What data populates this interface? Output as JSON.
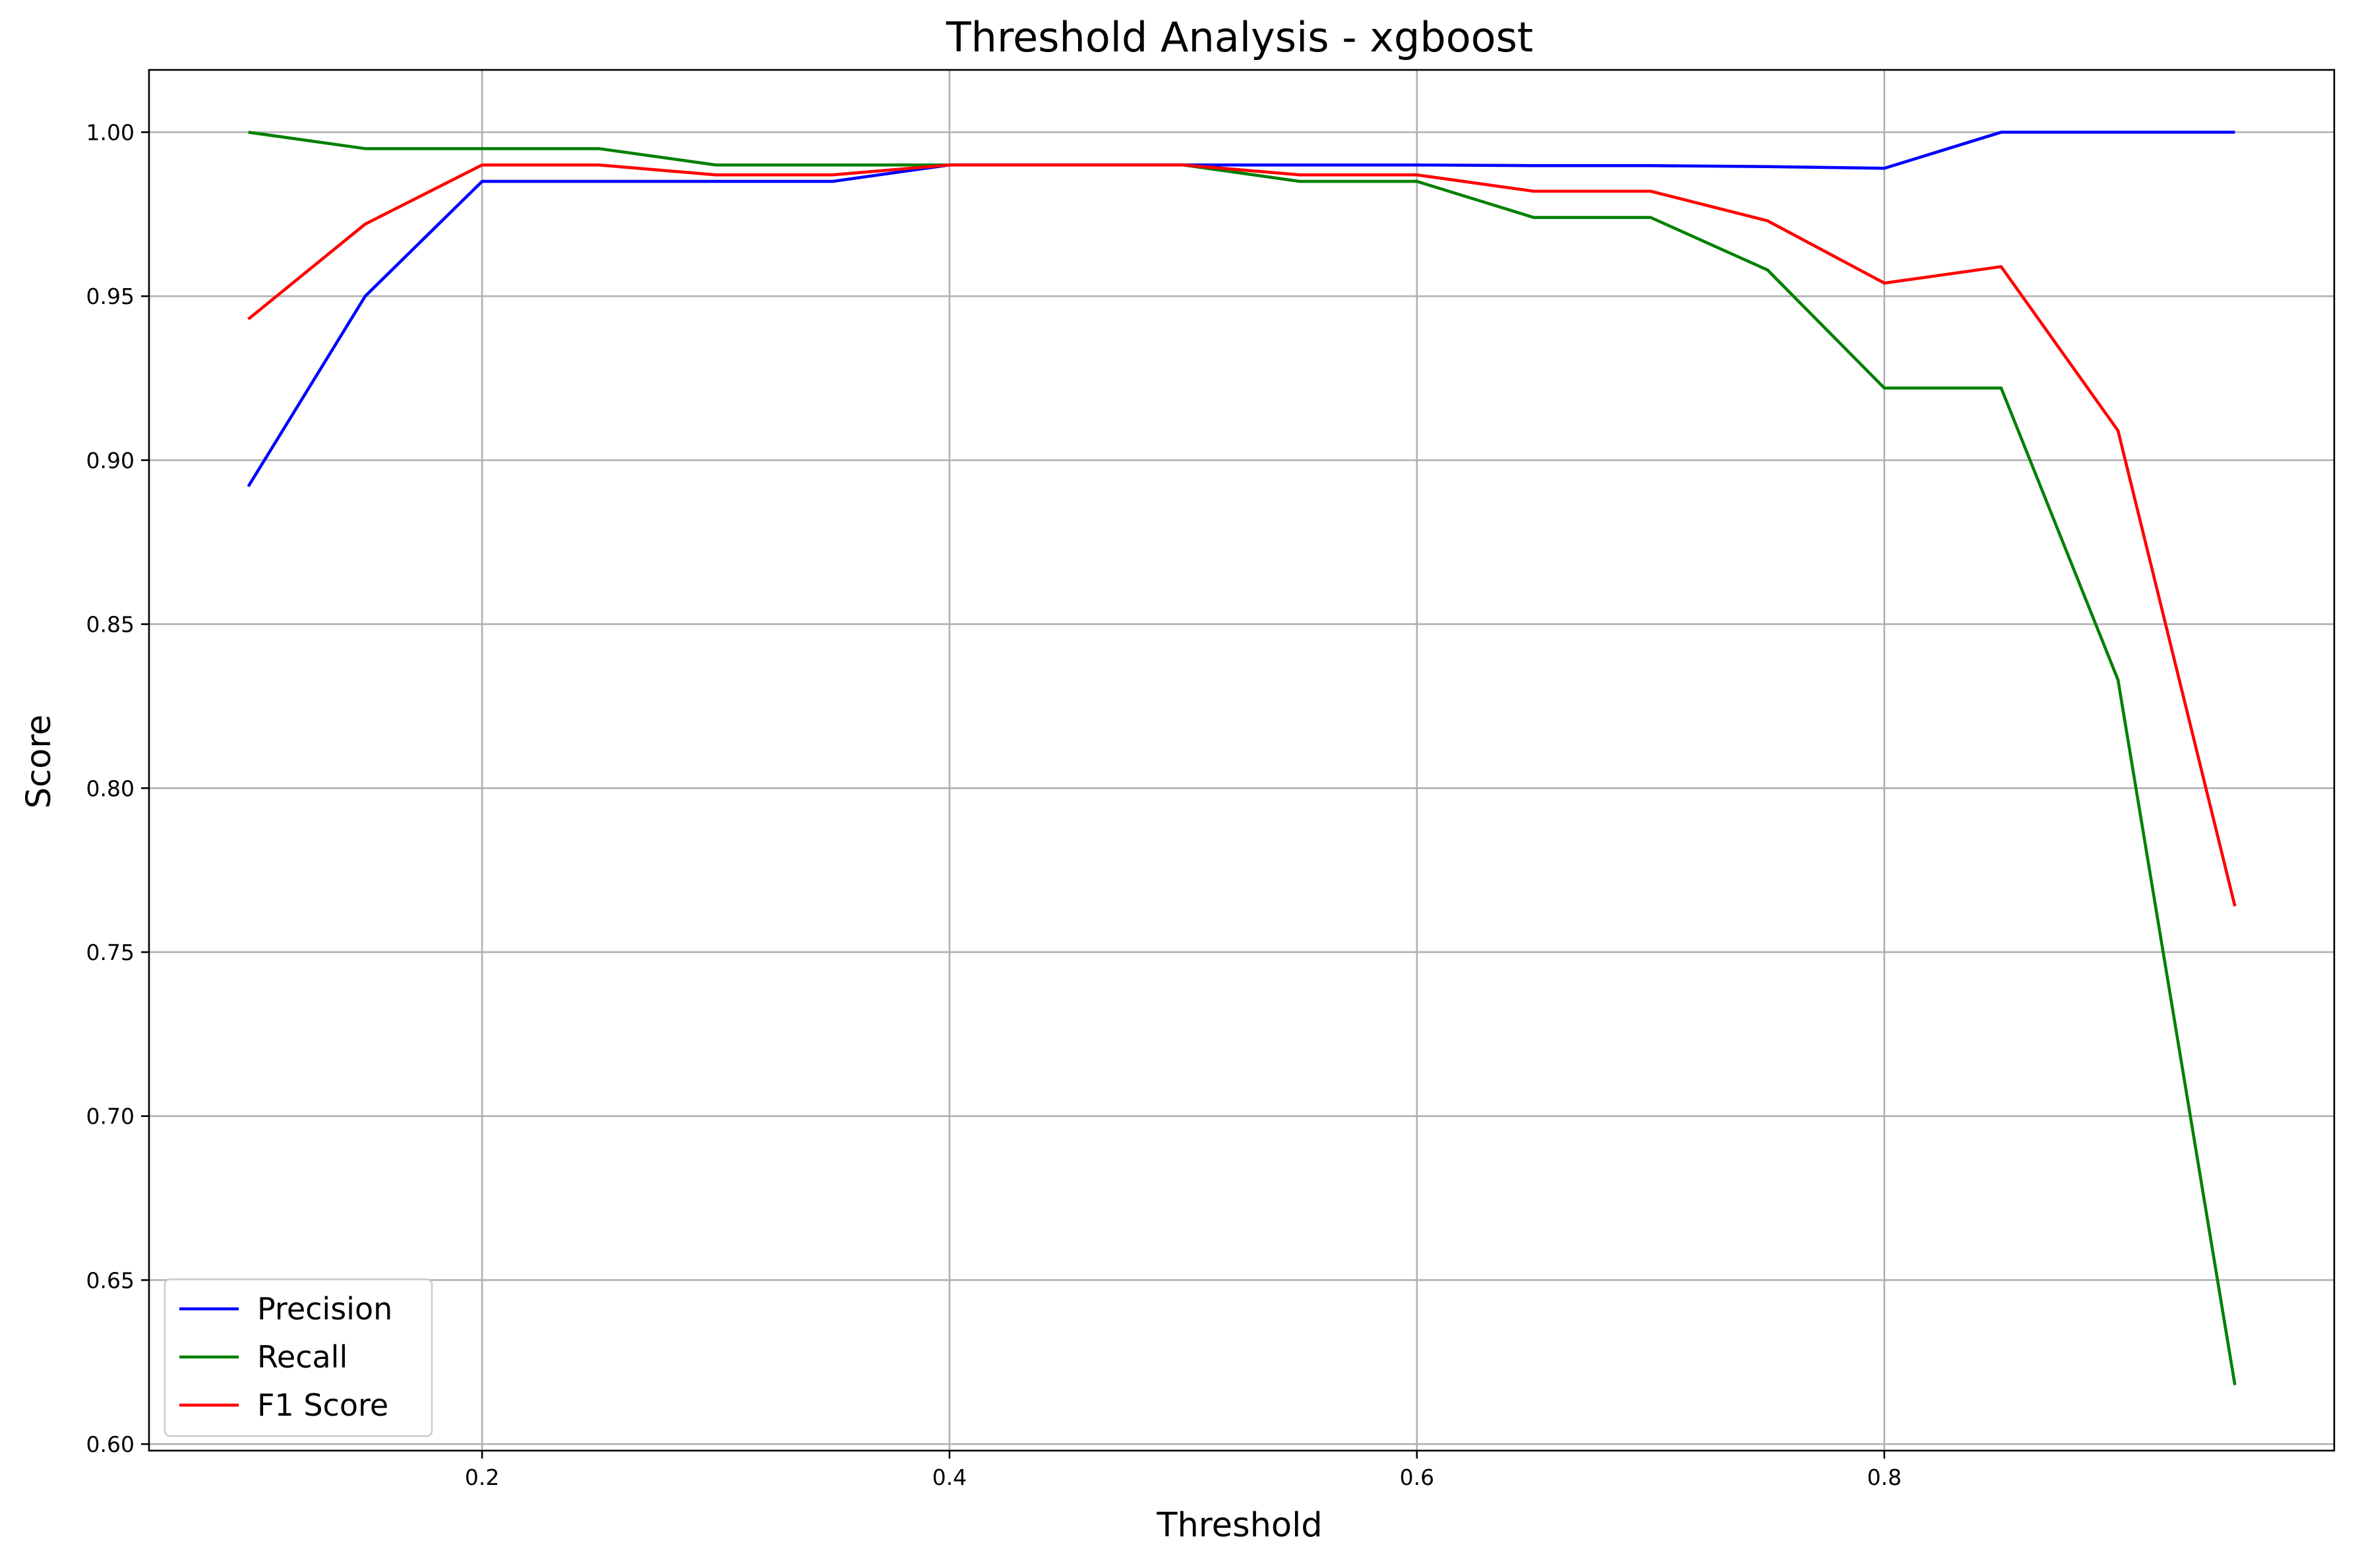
{
  "chart_data": {
    "type": "line",
    "title": "Threshold Analysis - xgboost",
    "xlabel": "Threshold",
    "ylabel": "Score",
    "xlim": [
      0.0575,
      0.9925
    ],
    "ylim": [
      0.598,
      1.019
    ],
    "xticks": [
      0.2,
      0.4,
      0.6,
      0.8
    ],
    "xtick_labels": [
      "0.2",
      "0.4",
      "0.6",
      "0.8"
    ],
    "yticks": [
      0.6,
      0.65,
      0.7,
      0.75,
      0.8,
      0.85,
      0.9,
      0.95,
      1.0
    ],
    "ytick_labels": [
      "0.60",
      "0.65",
      "0.70",
      "0.75",
      "0.80",
      "0.85",
      "0.90",
      "0.95",
      "1.00"
    ],
    "grid": true,
    "legend_position": "lower-left",
    "x": [
      0.1,
      0.15,
      0.2,
      0.25,
      0.3,
      0.35,
      0.4,
      0.45,
      0.5,
      0.55,
      0.6,
      0.65,
      0.7,
      0.75,
      0.8,
      0.85,
      0.9,
      0.95
    ],
    "series": [
      {
        "name": "Precision",
        "color": "#0000ff",
        "values": [
          0.892,
          0.95,
          0.985,
          0.985,
          0.985,
          0.985,
          0.99,
          0.99,
          0.99,
          0.99,
          0.99,
          0.9898,
          0.9898,
          0.9895,
          0.989,
          1.0,
          1.0,
          1.0
        ]
      },
      {
        "name": "Recall",
        "color": "#008000",
        "values": [
          1.0,
          0.995,
          0.995,
          0.995,
          0.99,
          0.99,
          0.99,
          0.99,
          0.99,
          0.985,
          0.985,
          0.974,
          0.974,
          0.958,
          0.922,
          0.922,
          0.833,
          0.618
        ]
      },
      {
        "name": "F1 Score",
        "color": "#ff0000",
        "values": [
          0.943,
          0.972,
          0.99,
          0.99,
          0.987,
          0.987,
          0.99,
          0.99,
          0.99,
          0.987,
          0.987,
          0.982,
          0.982,
          0.973,
          0.954,
          0.959,
          0.909,
          0.764
        ]
      }
    ]
  }
}
